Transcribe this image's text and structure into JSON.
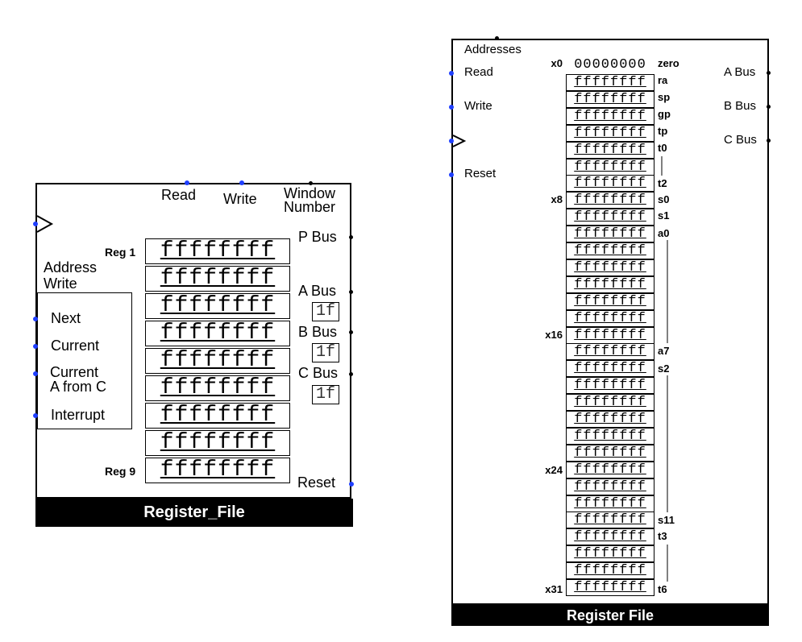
{
  "left": {
    "top_labels": {
      "read": "Read",
      "write": "Write",
      "window": "Window\nNumber"
    },
    "left_labels": {
      "address_write": "Address\nWrite",
      "next": "Next",
      "current": "Current",
      "current_a_from_c": "Current\nA from C",
      "interrupt": "Interrupt"
    },
    "right_labels": {
      "p_bus": "P Bus",
      "a_bus": "A Bus",
      "b_bus": "B Bus",
      "c_bus": "C Bus",
      "reset": "Reset"
    },
    "bus_values": {
      "a": "1f",
      "b": "1f",
      "c": "1f"
    },
    "reg_first_label": "Reg 1",
    "reg_last_label": "Reg 9",
    "registers": [
      "ffffffff",
      "ffffffff",
      "ffffffff",
      "ffffffff",
      "ffffffff",
      "ffffffff",
      "ffffffff",
      "ffffffff",
      "ffffffff"
    ],
    "title": "Register_File"
  },
  "right": {
    "labels": {
      "addresses": "Addresses",
      "read": "Read",
      "write": "Write",
      "reset": "Reset",
      "a_bus": "A Bus",
      "b_bus": "B Bus",
      "c_bus": "C Bus"
    },
    "zero_value": "00000000",
    "index_labels": {
      "x0": "x0",
      "x8": "x8",
      "x16": "x16",
      "x24": "x24",
      "x31": "x31"
    },
    "abi_names": {
      "zero": "zero",
      "ra": "ra",
      "sp": "sp",
      "gp": "gp",
      "tp": "tp",
      "t0": "t0",
      "t2": "t2",
      "s0": "s0",
      "s1": "s1",
      "a0": "a0",
      "a7": "a7",
      "s2": "s2",
      "s11": "s11",
      "t3": "t3",
      "t6": "t6"
    },
    "registers": [
      "ffffffff",
      "ffffffff",
      "ffffffff",
      "ffffffff",
      "ffffffff",
      "ffffffff",
      "ffffffff",
      "ffffffff",
      "ffffffff",
      "ffffffff",
      "ffffffff",
      "ffffffff",
      "ffffffff",
      "ffffffff",
      "ffffffff",
      "ffffffff",
      "ffffffff",
      "ffffffff",
      "ffffffff",
      "ffffffff",
      "ffffffff",
      "ffffffff",
      "ffffffff",
      "ffffffff",
      "ffffffff",
      "ffffffff",
      "ffffffff",
      "ffffffff",
      "ffffffff",
      "ffffffff",
      "ffffffff"
    ],
    "title": "Register File"
  },
  "colors": {
    "pin_blue": "#1f3fff",
    "pin_black": "#000000"
  }
}
